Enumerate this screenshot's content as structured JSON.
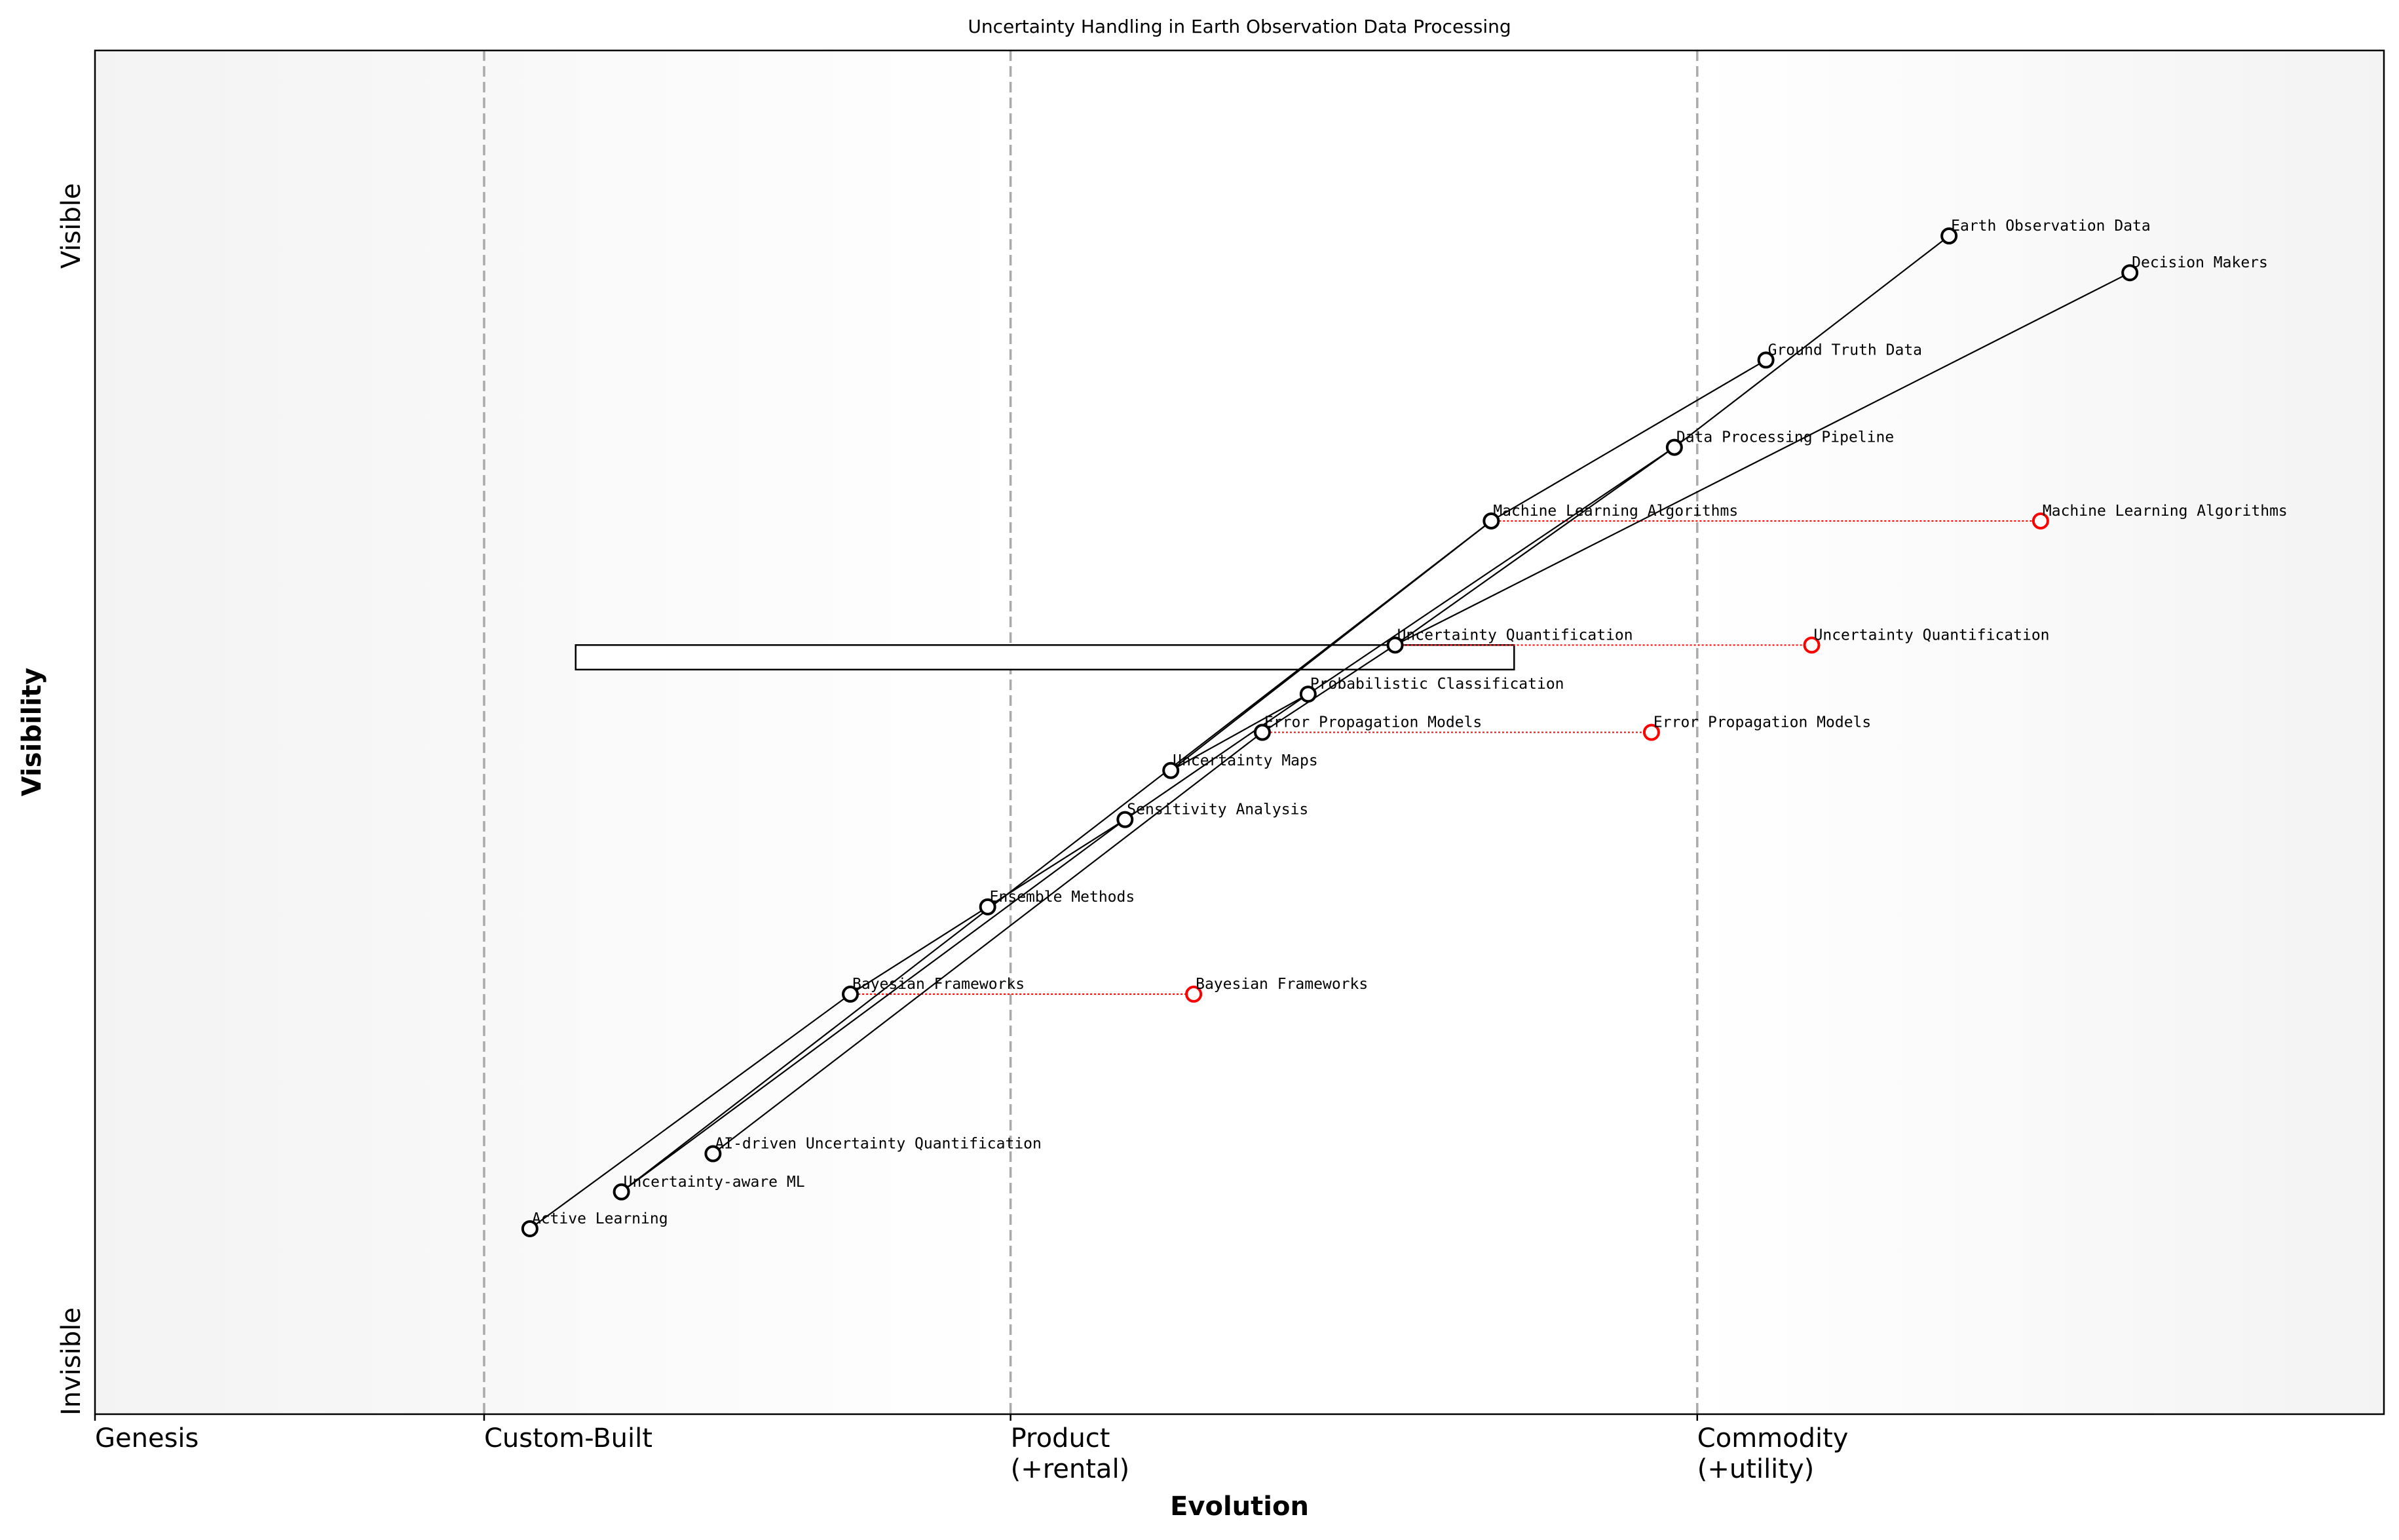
{
  "title": "Uncertainty Handling in Earth Observation Data Processing",
  "xlabel": "Evolution",
  "ylabel": "Visibility",
  "y_ticks": {
    "top": "Visible",
    "bottom": "Invisible"
  },
  "stages": [
    {
      "label": "Genesis",
      "line2": "",
      "x": 0.0
    },
    {
      "label": "Custom-Built",
      "line2": "",
      "x": 0.17
    },
    {
      "label": "Product",
      "line2": "(+rental)",
      "x": 0.4
    },
    {
      "label": "Commodity",
      "line2": "(+utility)",
      "x": 0.7
    }
  ],
  "colors": {
    "node": "#000000",
    "evolved": "#ff0000",
    "divider": "#aaaaaa",
    "edge_bg": "#f3f3f3",
    "mid_bg": "#ffffff"
  },
  "components": [
    {
      "name": "Earth Observation Data",
      "evolution": 0.81,
      "visibility": 0.864
    },
    {
      "name": "Decision Makers",
      "evolution": 0.889,
      "visibility": 0.837
    },
    {
      "name": "Ground Truth Data",
      "evolution": 0.73,
      "visibility": 0.773
    },
    {
      "name": "Data Processing Pipeline",
      "evolution": 0.69,
      "visibility": 0.709
    },
    {
      "name": "Machine Learning Algorithms",
      "evolution": 0.61,
      "visibility": 0.655
    },
    {
      "name": "Uncertainty Quantification",
      "evolution": 0.568,
      "visibility": 0.564
    },
    {
      "name": "Probabilistic Classification",
      "evolution": 0.53,
      "visibility": 0.528
    },
    {
      "name": "Error Propagation Models",
      "evolution": 0.51,
      "visibility": 0.5
    },
    {
      "name": "Uncertainty Maps",
      "evolution": 0.47,
      "visibility": 0.472
    },
    {
      "name": "Sensitivity Analysis",
      "evolution": 0.45,
      "visibility": 0.436
    },
    {
      "name": "Ensemble Methods",
      "evolution": 0.39,
      "visibility": 0.372
    },
    {
      "name": "Bayesian Frameworks",
      "evolution": 0.33,
      "visibility": 0.308
    },
    {
      "name": "AI-driven Uncertainty Quantification",
      "evolution": 0.27,
      "visibility": 0.191
    },
    {
      "name": "Uncertainty-aware ML",
      "evolution": 0.23,
      "visibility": 0.163
    },
    {
      "name": "Active Learning",
      "evolution": 0.19,
      "visibility": 0.136
    }
  ],
  "evolutions": [
    {
      "name": "Machine Learning Algorithms",
      "to": 0.85
    },
    {
      "name": "Uncertainty Quantification",
      "to": 0.75
    },
    {
      "name": "Error Propagation Models",
      "to": 0.68
    },
    {
      "name": "Bayesian Frameworks",
      "to": 0.48
    }
  ],
  "links": [
    [
      "Earth Observation Data",
      "Data Processing Pipeline"
    ],
    [
      "Decision Makers",
      "Uncertainty Quantification"
    ],
    [
      "Ground Truth Data",
      "Machine Learning Algorithms"
    ],
    [
      "Data Processing Pipeline",
      "Uncertainty Quantification"
    ],
    [
      "Data Processing Pipeline",
      "Probabilistic Classification"
    ],
    [
      "Machine Learning Algorithms",
      "Uncertainty Maps"
    ],
    [
      "Machine Learning Algorithms",
      "Uncertainty-aware ML"
    ],
    [
      "Uncertainty Quantification",
      "Error Propagation Models"
    ],
    [
      "Probabilistic Classification",
      "Uncertainty Maps"
    ],
    [
      "Probabilistic Classification",
      "Sensitivity Analysis"
    ],
    [
      "Error Propagation Models",
      "AI-driven Uncertainty Quantification"
    ],
    [
      "Sensitivity Analysis",
      "Ensemble Methods"
    ],
    [
      "Sensitivity Analysis",
      "Uncertainty-aware ML"
    ],
    [
      "Ensemble Methods",
      "Bayesian Frameworks"
    ],
    [
      "Bayesian Frameworks",
      "Active Learning"
    ]
  ],
  "pipeline": {
    "component": "Uncertainty Quantification",
    "start": 0.21,
    "end": 0.62,
    "top": 0.564,
    "bottom": 0.546
  }
}
